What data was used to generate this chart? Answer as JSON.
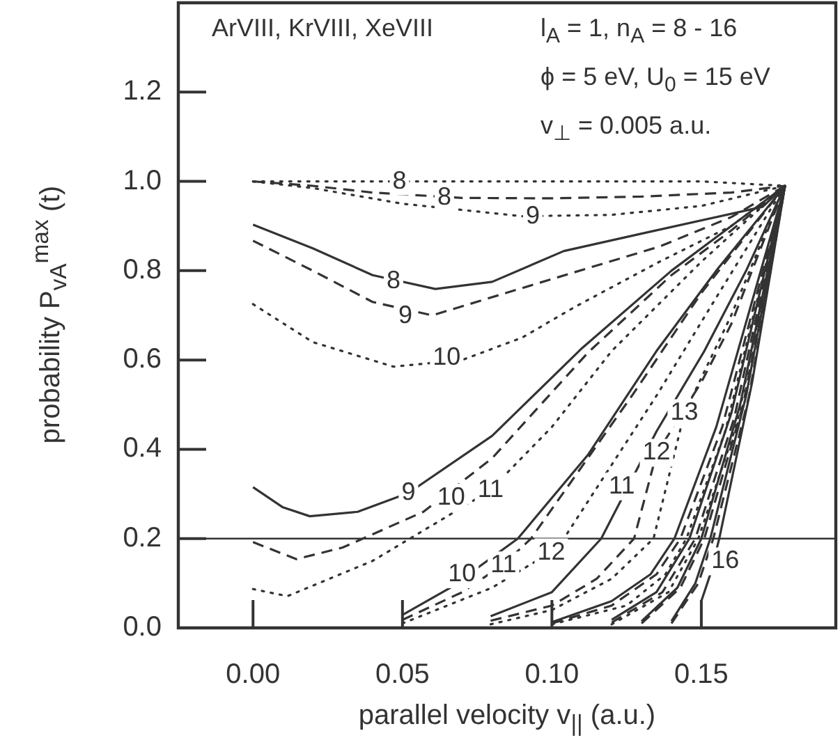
{
  "chart_data": {
    "type": "line",
    "xlabel": "parallel velocity v$_{||}$ (a.u.)",
    "ylabel": "probability P$_{vA}$$^{max}$ (t)",
    "xlim": [
      -0.025,
      0.195
    ],
    "ylim": [
      0,
      1.4
    ],
    "xticks": [
      {
        "value": 0,
        "label": "0.00"
      },
      {
        "value": 0.05,
        "label": "0.05"
      },
      {
        "value": 0.1,
        "label": "0.10"
      },
      {
        "value": 0.15,
        "label": "0.15"
      }
    ],
    "yticks": [
      {
        "value": 0,
        "label": "0.0"
      },
      {
        "value": 0.2,
        "label": "0.2"
      },
      {
        "value": 0.4,
        "label": "0.4"
      },
      {
        "value": 0.6,
        "label": "0.6"
      },
      {
        "value": 0.8,
        "label": "0.8"
      },
      {
        "value": 1,
        "label": "1.0"
      },
      {
        "value": 1.2,
        "label": "1.2"
      }
    ],
    "grid": false,
    "legend": false,
    "marker": "none",
    "ref_lines": [
      {
        "axis": "y",
        "value": 0.2,
        "color": "#333333",
        "line_style": "solid"
      }
    ],
    "annotations": [
      "ArVIII, KrVIII, XeVIII",
      "l$_{A}$ = 1, n$_{A}$ = 8 - 16",
      "ϕ = 5 eV, U$_{0}$ = 15 eV",
      "v$_{⊥}$ = 0.005 a.u.",
      {
        "text": "8",
        "x": 0.049,
        "y": 1.0
      },
      {
        "text": "8",
        "x": 0.064,
        "y": 0.963
      },
      {
        "text": "9",
        "x": 0.0936,
        "y": 0.922
      },
      {
        "text": "8",
        "x": 0.047,
        "y": 0.777
      },
      {
        "text": "9",
        "x": 0.051,
        "y": 0.699
      },
      {
        "text": "10",
        "x": 0.0648,
        "y": 0.605
      },
      {
        "text": "9",
        "x": 0.052,
        "y": 0.302
      },
      {
        "text": "10",
        "x": 0.0663,
        "y": 0.292
      },
      {
        "text": "11",
        "x": 0.0795,
        "y": 0.309
      },
      {
        "text": "10",
        "x": 0.0699,
        "y": 0.12
      },
      {
        "text": "11",
        "x": 0.0838,
        "y": 0.14
      },
      {
        "text": "12",
        "x": 0.0998,
        "y": 0.169
      },
      {
        "text": "11",
        "x": 0.1234,
        "y": 0.317
      },
      {
        "text": "12",
        "x": 0.135,
        "y": 0.392
      },
      {
        "text": "13",
        "x": 0.1443,
        "y": 0.481
      },
      {
        "text": "16",
        "x": 0.158,
        "y": 0.149
      }
    ],
    "series": [
      {
        "color": "#333333",
        "line_style": "dotted",
        "x": [
          0,
          0.03,
          0.1,
          0.15,
          0.178
        ],
        "values": [
          1.0,
          1.0,
          1.0,
          1.0,
          0.99
        ]
      },
      {
        "color": "#333333",
        "line_style": "dashed",
        "x": [
          0,
          0.02,
          0.04,
          0.07,
          0.1,
          0.13,
          0.16,
          0.178
        ],
        "values": [
          1.0,
          0.99,
          0.975,
          0.963,
          0.962,
          0.966,
          0.975,
          0.99
        ]
      },
      {
        "color": "#333333",
        "line_style": "dotted",
        "x": [
          0,
          0.02,
          0.05,
          0.09,
          0.12,
          0.15,
          0.178
        ],
        "values": [
          1.0,
          0.985,
          0.95,
          0.922,
          0.925,
          0.945,
          0.99
        ]
      },
      {
        "color": "#333333",
        "line_style": "solid",
        "x": [
          0,
          0.02,
          0.04,
          0.061,
          0.08,
          0.104,
          0.13,
          0.1705,
          0.178
        ],
        "values": [
          0.903,
          0.85,
          0.79,
          0.759,
          0.775,
          0.844,
          0.883,
          0.943,
          0.99
        ]
      },
      {
        "color": "#333333",
        "line_style": "dashed",
        "x": [
          0,
          0.02,
          0.04,
          0.06,
          0.09,
          0.136,
          0.16,
          0.178
        ],
        "values": [
          0.867,
          0.8,
          0.73,
          0.7,
          0.761,
          0.854,
          0.92,
          0.99
        ]
      },
      {
        "color": "#333333",
        "line_style": "dotted",
        "x": [
          0,
          0.02,
          0.047,
          0.07,
          0.09,
          0.108,
          0.136,
          0.16,
          0.178
        ],
        "values": [
          0.725,
          0.64,
          0.585,
          0.6,
          0.65,
          0.72,
          0.82,
          0.9,
          0.99
        ]
      },
      {
        "color": "#333333",
        "line_style": "solid",
        "x": [
          0,
          0.01,
          0.019,
          0.035,
          0.052,
          0.08,
          0.11,
          0.14,
          0.16,
          0.178
        ],
        "values": [
          0.315,
          0.27,
          0.25,
          0.26,
          0.302,
          0.43,
          0.626,
          0.8,
          0.9,
          0.99
        ]
      },
      {
        "color": "#333333",
        "line_style": "dashed",
        "x": [
          0,
          0.0145,
          0.03,
          0.057,
          0.08,
          0.112,
          0.14,
          0.16,
          0.178
        ],
        "values": [
          0.192,
          0.154,
          0.18,
          0.26,
          0.38,
          0.616,
          0.79,
          0.89,
          0.99
        ]
      },
      {
        "color": "#333333",
        "line_style": "dotted",
        "x": [
          0,
          0.0115,
          0.04,
          0.079,
          0.1,
          0.12,
          0.15,
          0.178
        ],
        "values": [
          0.087,
          0.071,
          0.15,
          0.306,
          0.45,
          0.62,
          0.82,
          0.99
        ]
      },
      {
        "color": "#333333",
        "line_style": "solid",
        "x": [
          0.05,
          0.066,
          0.0886,
          0.112,
          0.135,
          0.155,
          0.178
        ],
        "values": [
          0.029,
          0.09,
          0.2,
          0.387,
          0.62,
          0.8,
          0.99
        ]
      },
      {
        "color": "#333333",
        "line_style": "dashed",
        "x": [
          0.05,
          0.07,
          0.084,
          0.093,
          0.127,
          0.15,
          0.178
        ],
        "values": [
          0.018,
          0.08,
          0.143,
          0.2,
          0.522,
          0.75,
          0.99
        ]
      },
      {
        "color": "#333333",
        "line_style": "dotted",
        "x": [
          0.05,
          0.08,
          0.0995,
          0.104,
          0.135,
          0.155,
          0.178
        ],
        "values": [
          0.01,
          0.09,
          0.169,
          0.2,
          0.52,
          0.74,
          0.99
        ]
      },
      {
        "color": "#333333",
        "line_style": "solid",
        "x": [
          0.0795,
          0.1,
          0.1165,
          0.135,
          0.151,
          0.165,
          0.178
        ],
        "values": [
          0.026,
          0.08,
          0.2,
          0.44,
          0.62,
          0.8,
          0.99
        ]
      },
      {
        "color": "#333333",
        "line_style": "dashed",
        "x": [
          0.0795,
          0.1,
          0.115,
          0.1275,
          0.135,
          0.15,
          0.16,
          0.178
        ],
        "values": [
          0.016,
          0.05,
          0.11,
          0.2,
          0.39,
          0.55,
          0.68,
          0.99
        ]
      },
      {
        "color": "#333333",
        "line_style": "dotted",
        "x": [
          0.0795,
          0.1,
          0.12,
          0.134,
          0.1443,
          0.16,
          0.178
        ],
        "values": [
          0.008,
          0.04,
          0.11,
          0.2,
          0.48,
          0.7,
          0.99
        ]
      },
      {
        "color": "#333333",
        "line_style": "solid",
        "x": [
          0.1,
          0.12,
          0.133,
          0.141,
          0.155,
          0.178
        ],
        "values": [
          0.013,
          0.06,
          0.12,
          0.2,
          0.45,
          0.99
        ]
      },
      {
        "color": "#333333",
        "line_style": "dashed",
        "x": [
          0.1,
          0.12,
          0.135,
          0.143,
          0.157,
          0.178
        ],
        "values": [
          0.01,
          0.05,
          0.12,
          0.2,
          0.45,
          0.99
        ]
      },
      {
        "color": "#333333",
        "line_style": "dotted",
        "x": [
          0.1,
          0.125,
          0.138,
          0.145,
          0.158,
          0.178
        ],
        "values": [
          0.008,
          0.05,
          0.12,
          0.2,
          0.44,
          0.99
        ]
      },
      {
        "color": "#333333",
        "line_style": "solid",
        "x": [
          0.12,
          0.135,
          0.146,
          0.16,
          0.178
        ],
        "values": [
          0.018,
          0.08,
          0.2,
          0.48,
          0.99
        ]
      },
      {
        "color": "#333333",
        "line_style": "dashed",
        "x": [
          0.12,
          0.137,
          0.148,
          0.161,
          0.178
        ],
        "values": [
          0.012,
          0.08,
          0.2,
          0.47,
          0.99
        ]
      },
      {
        "color": "#333333",
        "line_style": "dotted",
        "x": [
          0.12,
          0.139,
          0.149,
          0.162,
          0.178
        ],
        "values": [
          0.008,
          0.08,
          0.2,
          0.46,
          0.99
        ]
      },
      {
        "color": "#333333",
        "line_style": "solid",
        "x": [
          0.13,
          0.142,
          0.15,
          0.163,
          0.178
        ],
        "values": [
          0.015,
          0.09,
          0.2,
          0.5,
          0.99
        ]
      },
      {
        "color": "#333333",
        "line_style": "dashed",
        "x": [
          0.13,
          0.143,
          0.151,
          0.164,
          0.178
        ],
        "values": [
          0.01,
          0.09,
          0.2,
          0.5,
          0.99
        ]
      },
      {
        "color": "#333333",
        "line_style": "solid",
        "x": [
          0.14,
          0.148,
          0.153,
          0.165,
          0.178
        ],
        "values": [
          0.015,
          0.1,
          0.2,
          0.52,
          0.99
        ]
      },
      {
        "color": "#333333",
        "line_style": "dashed",
        "x": [
          0.14,
          0.149,
          0.154,
          0.166,
          0.178
        ],
        "values": [
          0.01,
          0.1,
          0.2,
          0.52,
          0.99
        ]
      },
      {
        "color": "#333333",
        "line_style": "solid",
        "x": [
          0.15,
          0.153,
          0.156,
          0.167,
          0.178
        ],
        "values": [
          0.06,
          0.12,
          0.2,
          0.55,
          0.99
        ]
      }
    ]
  }
}
